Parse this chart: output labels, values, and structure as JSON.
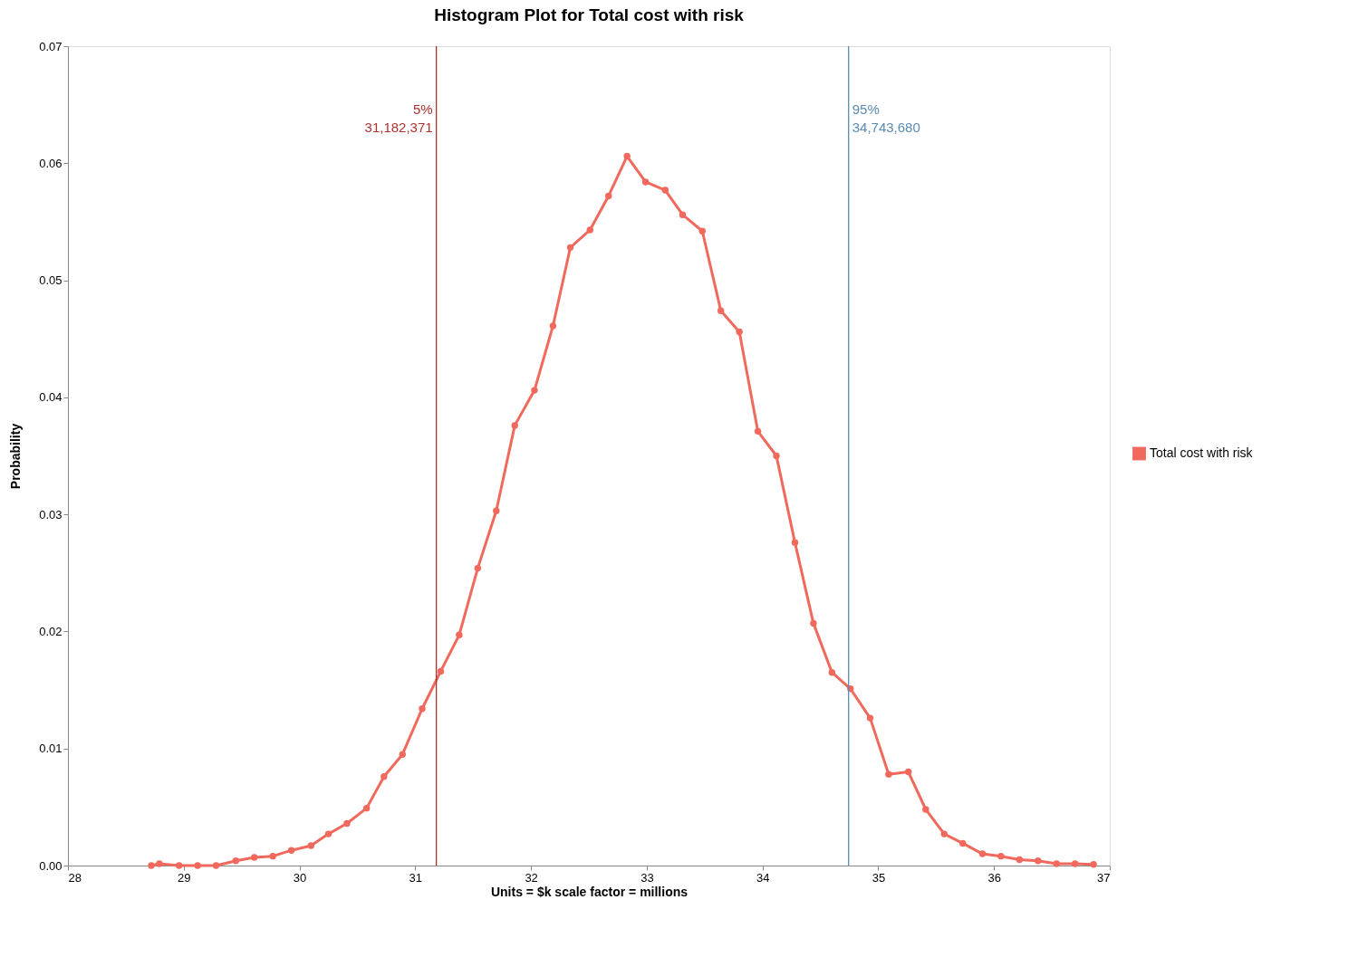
{
  "chart_data": {
    "type": "line",
    "title": "Histogram Plot for Total cost with risk",
    "xlabel": "Units = $k scale factor = millions",
    "ylabel": "Probability",
    "x": [
      28.72,
      28.79,
      28.96,
      29.12,
      29.28,
      29.45,
      29.61,
      29.77,
      29.93,
      30.1,
      30.25,
      30.41,
      30.58,
      30.73,
      30.89,
      31.06,
      31.22,
      31.38,
      31.54,
      31.7,
      31.86,
      32.03,
      32.19,
      32.34,
      32.51,
      32.67,
      32.83,
      32.99,
      33.16,
      33.31,
      33.48,
      33.64,
      33.8,
      33.96,
      34.12,
      34.28,
      34.44,
      34.6,
      34.76,
      34.93,
      35.09,
      35.26,
      35.41,
      35.57,
      35.73,
      35.9,
      36.06,
      36.22,
      36.38,
      36.54,
      36.7,
      36.86
    ],
    "series": [
      {
        "name": "Total cost with risk",
        "color": "#f0695c",
        "values": [
          0,
          0.00015,
          0,
          0,
          0,
          0.0004,
          0.0007,
          0.0008,
          0.0013,
          0.0017,
          0.0027,
          0.0036,
          0.0049,
          0.0076,
          0.0095,
          0.0134,
          0.0166,
          0.0197,
          0.0254,
          0.0303,
          0.0376,
          0.0406,
          0.0461,
          0.0528,
          0.0543,
          0.0572,
          0.0606,
          0.0584,
          0.0577,
          0.0556,
          0.0542,
          0.0474,
          0.0456,
          0.0371,
          0.035,
          0.0276,
          0.0207,
          0.0165,
          0.0151,
          0.0126,
          0.0078,
          0.008,
          0.0048,
          0.0027,
          0.0019,
          0.001,
          0.0008,
          0.0005,
          0.0004,
          0.00015,
          0.00015,
          0.0001
        ]
      }
    ],
    "xlim": [
      28,
      37
    ],
    "xticks": [
      28,
      29,
      30,
      31,
      32,
      33,
      34,
      35,
      36,
      37
    ],
    "ylim": [
      0,
      0.07
    ],
    "yticks": [
      {
        "value": 0,
        "label": "0.00"
      },
      {
        "value": 0.01,
        "label": "0.01"
      },
      {
        "value": 0.02,
        "label": "0.02"
      },
      {
        "value": 0.03,
        "label": "0.03"
      },
      {
        "value": 0.04,
        "label": "0.04"
      },
      {
        "value": 0.05,
        "label": "0.05"
      },
      {
        "value": 0.06,
        "label": "0.06"
      },
      {
        "value": 0.07,
        "label": "0.07"
      }
    ],
    "ref_lines": [
      {
        "axis": "x",
        "value": 31.182371,
        "label": "5%\n31,182,371",
        "color": "#b03030"
      },
      {
        "axis": "x",
        "value": 34.74368,
        "label": "95%\n34,743,680",
        "color": "#5a8ab5"
      }
    ],
    "grid": false,
    "legend": "right",
    "marker": "circle",
    "line_style": "solid"
  }
}
